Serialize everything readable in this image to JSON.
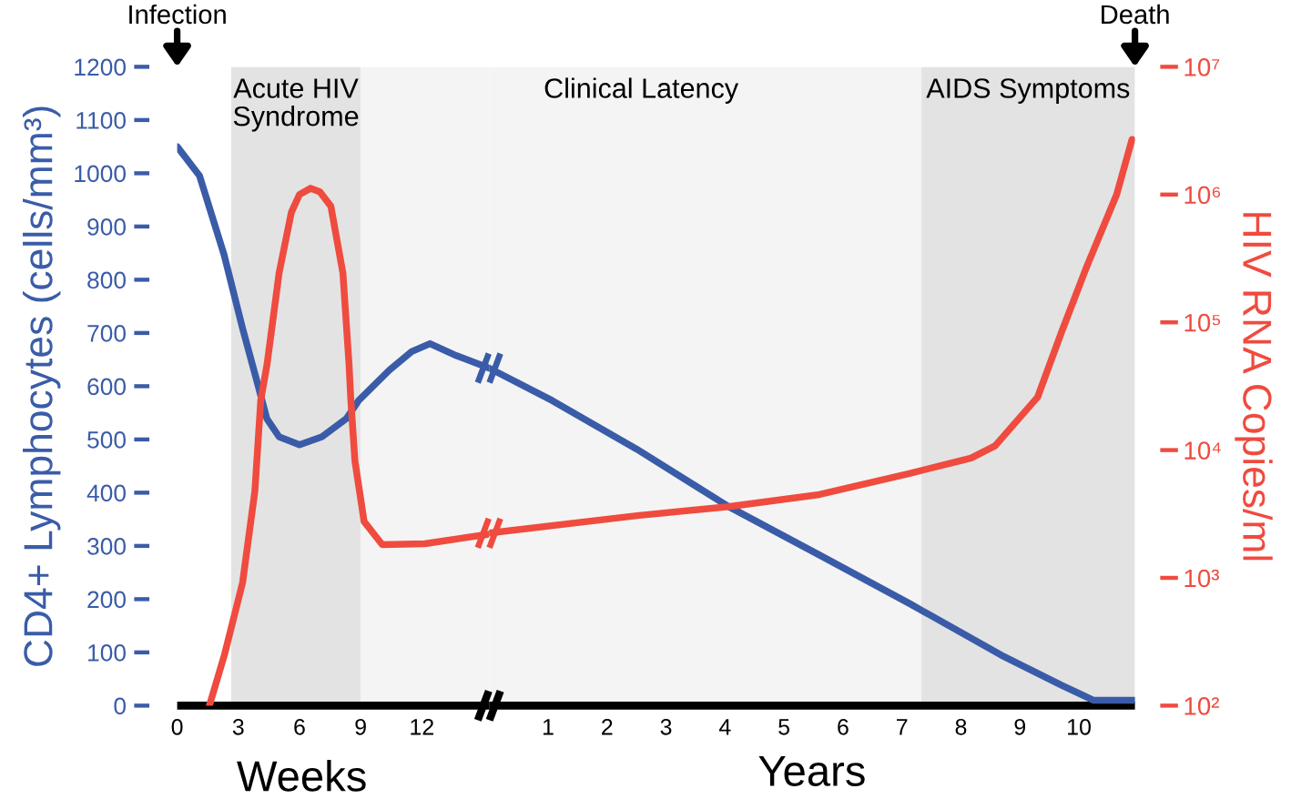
{
  "chart_data": [
    {
      "type": "line",
      "xlabel": "Weeks",
      "ylabel": "CD4+ Lymphocytes (cells/mm³)",
      "xlim": [
        0,
        15.3
      ],
      "xticks": [
        0,
        3,
        6,
        9,
        12
      ],
      "ylim": [
        0,
        1200
      ],
      "yticks": [
        0,
        100,
        200,
        300,
        400,
        500,
        600,
        700,
        800,
        900,
        1000,
        1100,
        1200
      ],
      "y2lim": [
        100,
        10000000
      ],
      "log": "y2",
      "tick_labels": "xy",
      "bands": [
        {
          "axis": "x",
          "from": 2.65,
          "to": 9,
          "label": "Acute HIV\nSyndrome",
          "color": "#e3e3e3"
        },
        {
          "axis": "x",
          "from": 9,
          "to": 15.3,
          "color": "#f4f4f4"
        }
      ],
      "annotations": [
        "Infection"
      ],
      "series": [
        {
          "color": "#3a5ca8",
          "x": [
            0,
            1.1,
            2.3,
            3.2,
            4.0,
            4.4,
            5.0,
            6.0,
            7.1,
            8.3,
            8.9,
            10.4,
            11.5,
            12.4,
            13.6,
            15.3
          ],
          "values": [
            1050,
            995,
            847,
            710,
            597,
            539,
            505,
            490,
            505,
            539,
            573,
            630,
            665,
            680,
            659,
            634
          ]
        },
        {
          "color": "#ef4b3f",
          "axis": "y2",
          "x": [
            1.58,
            2.32,
            3.21,
            3.81,
            4.1,
            4.41,
            5.0,
            5.6,
            6.0,
            6.55,
            7.0,
            7.54,
            8.13,
            8.43,
            8.52,
            8.72,
            9.17,
            10.06,
            12.14,
            15.3
          ],
          "values": [
            100,
            250,
            920,
            4750,
            24500,
            47000,
            243000,
            725000,
            1000000,
            1120000,
            1050000,
            810000,
            243000,
            47000,
            24500,
            8200,
            2760,
            1820,
            1850,
            2200
          ]
        }
      ]
    },
    {
      "type": "line",
      "xlabel": "Years",
      "y2label": "HIV RNA Copies/ml",
      "xlim": [
        0,
        10.95
      ],
      "xticks": [
        1,
        2,
        3,
        4,
        5,
        6,
        7,
        8,
        9,
        10
      ],
      "ylim": [
        0,
        1200
      ],
      "y2lim": [
        100,
        10000000
      ],
      "y2ticks": [
        {
          "value": 100,
          "label": "10²"
        },
        {
          "value": 1000,
          "label": "10³"
        },
        {
          "value": 10000,
          "label": "10⁴"
        },
        {
          "value": 100000,
          "label": "10⁵"
        },
        {
          "value": 1000000,
          "label": "10⁶"
        },
        {
          "value": 10000000,
          "label": "10⁷"
        }
      ],
      "log": "y2",
      "tick_labels": "xy2",
      "bands": [
        {
          "axis": "x",
          "from": 0,
          "to": 7.33,
          "label": "Clinical Latency",
          "color": "#f4f4f4"
        },
        {
          "axis": "x",
          "from": 7.33,
          "to": 10.95,
          "label": "AIDS Symptoms",
          "color": "#e3e3e3"
        }
      ],
      "annotations": [
        "Death"
      ],
      "series": [
        {
          "color": "#3a5ca8",
          "x": [
            0,
            1.07,
            2.5,
            4.06,
            5.6,
            7.14,
            8.68,
            9.71,
            10.25,
            10.95
          ],
          "values": [
            634,
            573,
            482,
            374,
            283,
            191,
            95,
            38,
            10,
            10
          ]
        },
        {
          "color": "#ef4b3f",
          "axis": "y2",
          "x": [
            0,
            2.51,
            4.06,
            5.6,
            7.14,
            8.17,
            8.58,
            9.3,
            9.71,
            10.13,
            10.64,
            10.9
          ],
          "values": [
            2240,
            3070,
            3610,
            4490,
            6590,
            8650,
            10800,
            26000,
            85000,
            271000,
            1000000,
            2700000
          ]
        }
      ]
    }
  ]
}
